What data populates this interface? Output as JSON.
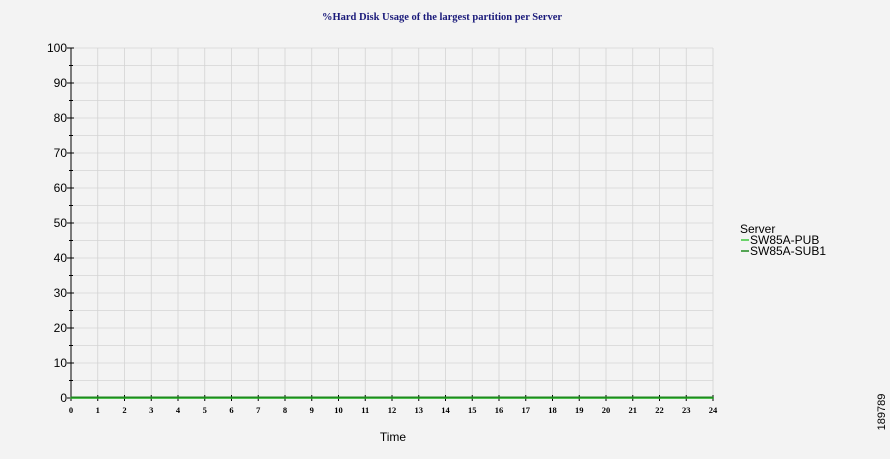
{
  "chart_data": {
    "type": "line",
    "title": "%Hard Disk Usage of the largest partition per Server",
    "xlabel": "Time",
    "ylabel": "",
    "x": [
      0,
      1,
      2,
      3,
      4,
      5,
      6,
      7,
      8,
      9,
      10,
      11,
      12,
      13,
      14,
      15,
      16,
      17,
      18,
      19,
      20,
      21,
      22,
      23,
      24
    ],
    "xlim": [
      0,
      24
    ],
    "ylim": [
      0,
      100
    ],
    "yticks": [
      0,
      10,
      20,
      30,
      40,
      50,
      60,
      70,
      80,
      90,
      100
    ],
    "grid": true,
    "legend": {
      "title": "Server",
      "placement": "right"
    },
    "series": [
      {
        "name": "SW85A-PUB",
        "color": "#3cc83c",
        "values": [
          0,
          0,
          0,
          0,
          0,
          0,
          0,
          0,
          0,
          0,
          0,
          0,
          0,
          0,
          0,
          0,
          0,
          0,
          0,
          0,
          0,
          0,
          0,
          0,
          0
        ]
      },
      {
        "name": "SW85A-SUB1",
        "color": "#1f8a1f",
        "values": [
          0,
          0,
          0,
          0,
          0,
          0,
          0,
          0,
          0,
          0,
          0,
          0,
          0,
          0,
          0,
          0,
          0,
          0,
          0,
          0,
          0,
          0,
          0,
          0,
          0
        ]
      }
    ]
  },
  "colors": {
    "title": "#1a1a7a",
    "grid": "#d4d4d4",
    "axis": "#000000",
    "background": "#f3f3f3"
  },
  "figure_id": "189789"
}
